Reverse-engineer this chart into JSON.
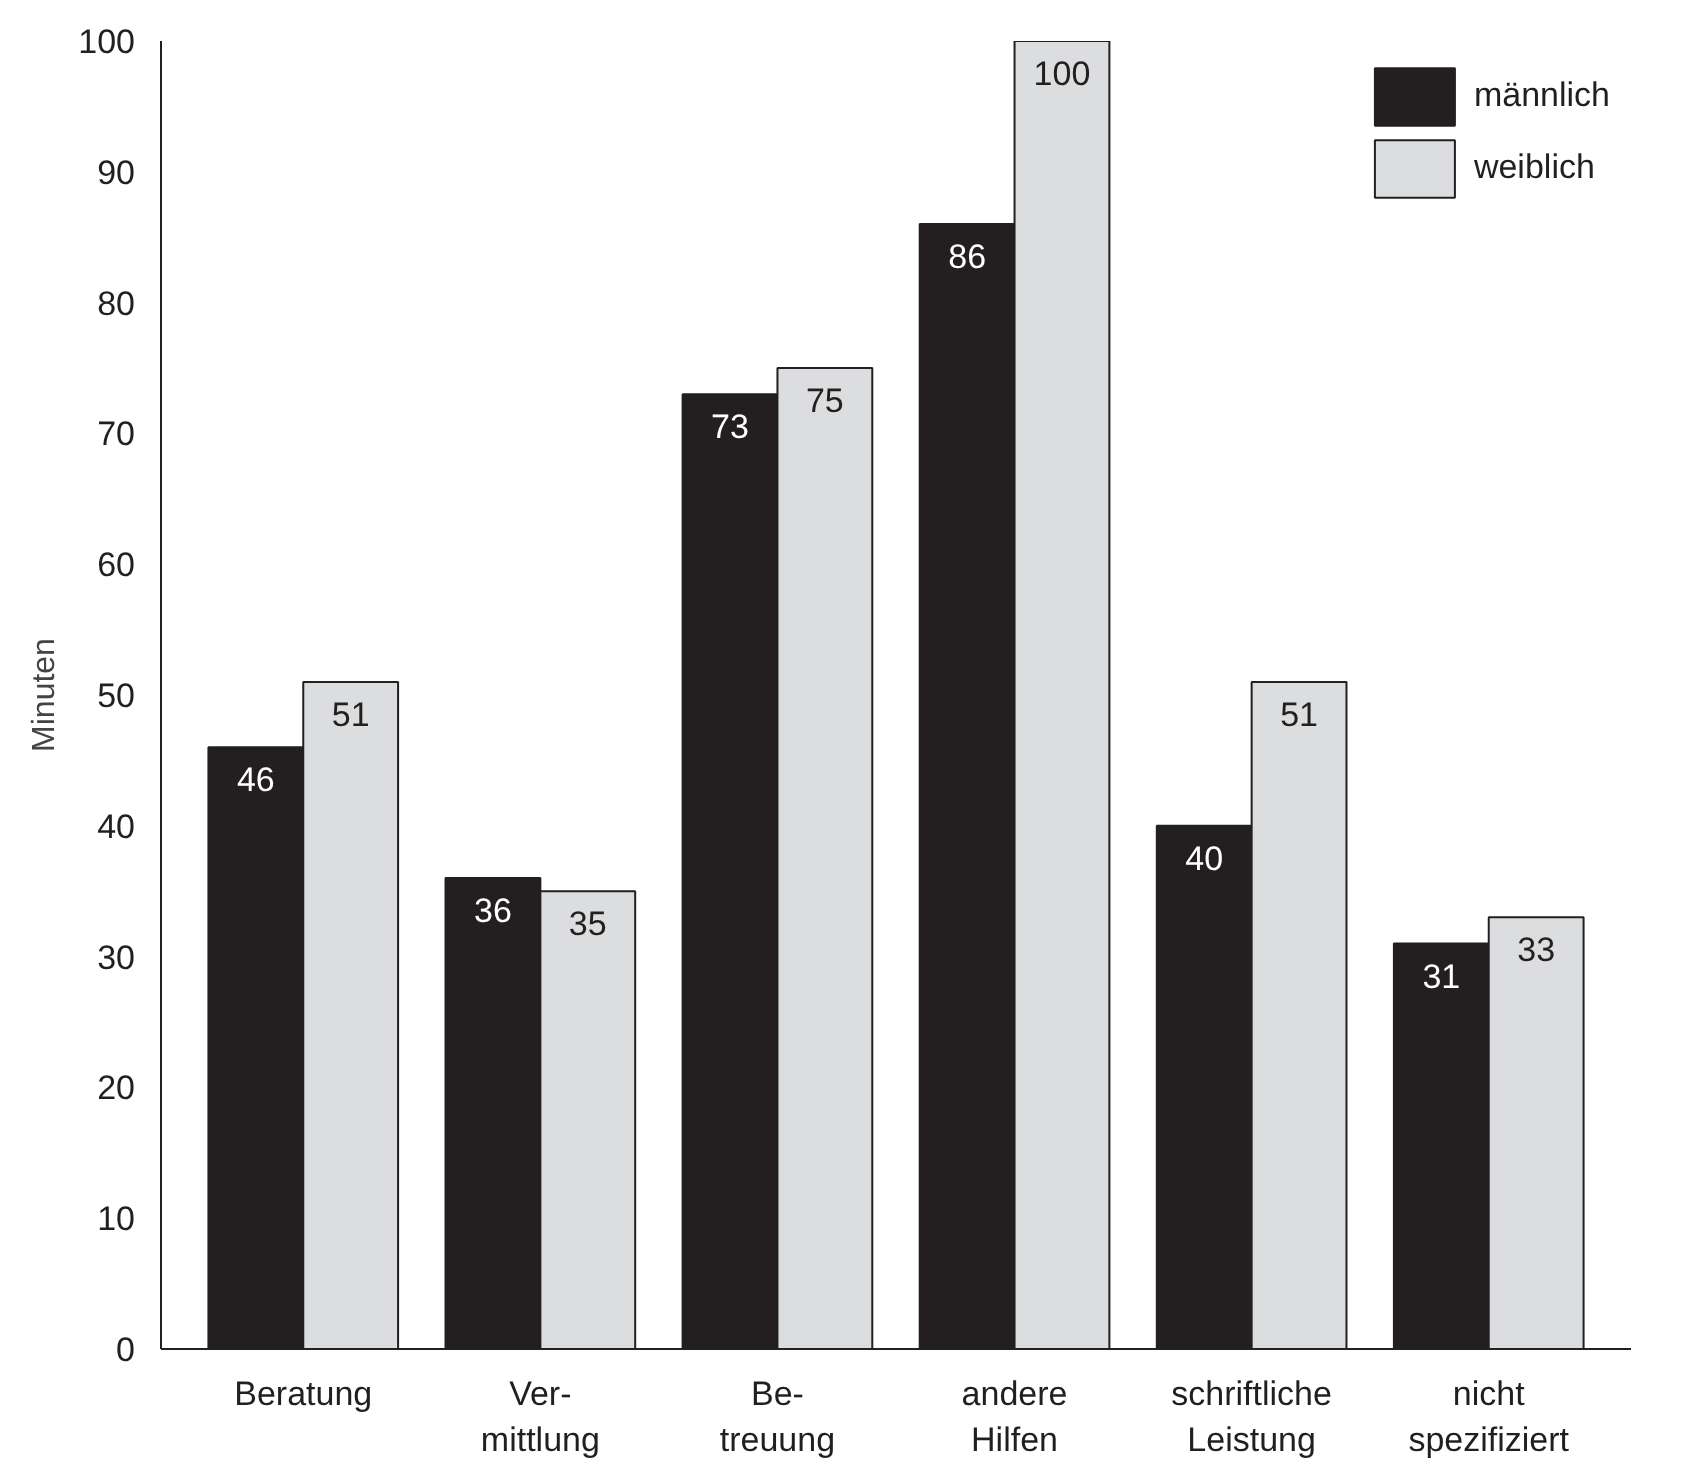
{
  "chart_data": {
    "type": "bar",
    "ylabel": "Minuten",
    "categories": [
      "Beratung",
      "Ver-\nmittlung",
      "Be-\ntreuung",
      "andere\nHilfen",
      "schriftliche\nLeistung",
      "nicht\nspezifiziert"
    ],
    "series": [
      {
        "name": "männlich",
        "color": "#231f20",
        "values": [
          46,
          36,
          73,
          86,
          40,
          31
        ]
      },
      {
        "name": "weiblich",
        "color": "#dcdddf",
        "values": [
          51,
          35,
          75,
          100,
          51,
          33
        ]
      }
    ],
    "ylim": [
      0,
      100
    ],
    "yticks": [
      0,
      10,
      20,
      30,
      40,
      50,
      60,
      70,
      80,
      90,
      100
    ],
    "grid": false,
    "legend": "top right",
    "data_labels": true
  }
}
